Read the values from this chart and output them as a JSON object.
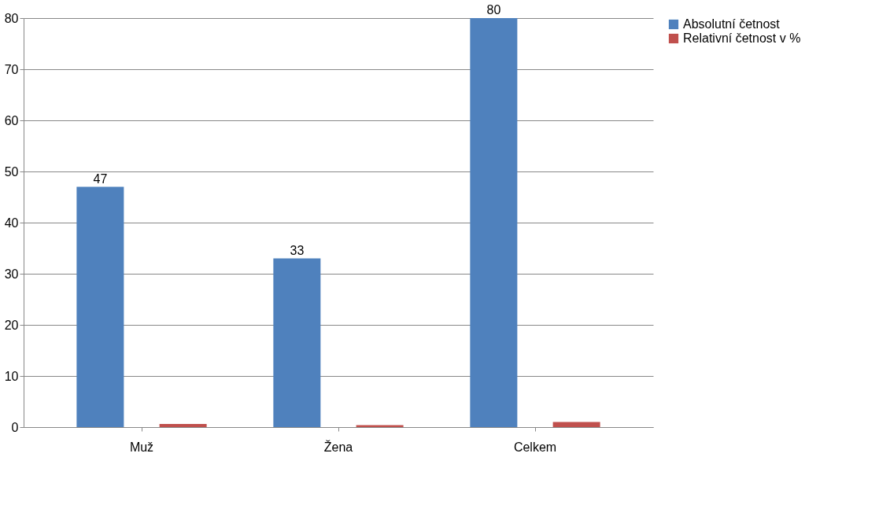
{
  "chart_data": {
    "type": "bar",
    "categories": [
      "Muž",
      "Žena",
      "Celkem"
    ],
    "series": [
      {
        "name": "Absolutní četnost",
        "color": "#4f81bd",
        "values": [
          47,
          33,
          80
        ],
        "value_labels": [
          "47",
          "33",
          "80"
        ]
      },
      {
        "name": "Relativní četnost v %",
        "color": "#c0504d",
        "values": [
          0.6,
          0.4,
          1
        ]
      }
    ],
    "ylim": [
      0,
      80
    ],
    "yticks": [
      0,
      10,
      20,
      30,
      40,
      50,
      60,
      70,
      80
    ],
    "grid": "y",
    "legend": "right"
  }
}
